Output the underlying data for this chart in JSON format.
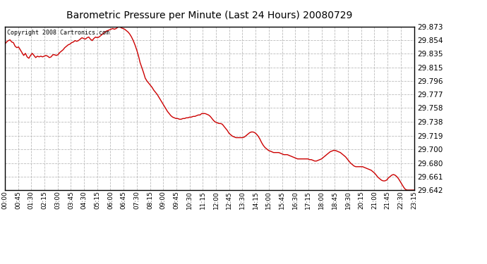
{
  "title": "Barometric Pressure per Minute (Last 24 Hours) 20080729",
  "copyright": "Copyright 2008 Cartronics.com",
  "line_color": "#cc0000",
  "bg_color": "#ffffff",
  "plot_bg_color": "#ffffff",
  "grid_color": "#bbbbbb",
  "border_color": "#000000",
  "yticks": [
    29.873,
    29.854,
    29.835,
    29.815,
    29.796,
    29.777,
    29.758,
    29.738,
    29.719,
    29.7,
    29.68,
    29.661,
    29.642
  ],
  "xtick_labels": [
    "00:00",
    "00:45",
    "01:30",
    "02:15",
    "03:00",
    "03:45",
    "04:30",
    "05:15",
    "06:00",
    "06:45",
    "07:30",
    "08:15",
    "09:00",
    "09:45",
    "10:30",
    "11:15",
    "12:00",
    "12:45",
    "13:30",
    "14:15",
    "15:00",
    "15:45",
    "16:30",
    "17:15",
    "18:00",
    "18:45",
    "19:30",
    "20:15",
    "21:00",
    "21:45",
    "22:30",
    "23:15"
  ],
  "ymin": 29.642,
  "ymax": 29.873,
  "pressure_data": [
    29.848,
    29.851,
    29.853,
    29.854,
    29.851,
    29.85,
    29.845,
    29.843,
    29.844,
    29.84,
    29.836,
    29.832,
    29.835,
    29.83,
    29.828,
    29.832,
    29.835,
    29.832,
    29.829,
    29.831,
    29.83,
    29.831,
    29.83,
    29.831,
    29.832,
    29.831,
    29.829,
    29.83,
    29.833,
    29.833,
    29.832,
    29.833,
    29.836,
    29.838,
    29.84,
    29.843,
    29.845,
    29.847,
    29.848,
    29.85,
    29.851,
    29.853,
    29.852,
    29.853,
    29.855,
    29.857,
    29.856,
    29.855,
    29.857,
    29.858,
    29.855,
    29.853,
    29.856,
    29.858,
    29.857,
    29.858,
    29.86,
    29.862,
    29.864,
    29.866,
    29.867,
    29.868,
    29.869,
    29.87,
    29.869,
    29.87,
    29.872,
    29.873,
    29.871,
    29.87,
    29.869,
    29.867,
    29.865,
    29.862,
    29.858,
    29.853,
    29.847,
    29.84,
    29.832,
    29.822,
    29.815,
    29.808,
    29.8,
    29.796,
    29.793,
    29.79,
    29.787,
    29.783,
    29.78,
    29.777,
    29.773,
    29.769,
    29.765,
    29.761,
    29.757,
    29.753,
    29.75,
    29.747,
    29.745,
    29.744,
    29.743,
    29.743,
    29.742,
    29.742,
    29.743,
    29.743,
    29.744,
    29.744,
    29.745,
    29.745,
    29.746,
    29.746,
    29.747,
    29.748,
    29.748,
    29.75,
    29.75,
    29.75,
    29.749,
    29.748,
    29.746,
    29.743,
    29.74,
    29.738,
    29.737,
    29.736,
    29.736,
    29.735,
    29.732,
    29.729,
    29.726,
    29.722,
    29.72,
    29.718,
    29.717,
    29.716,
    29.716,
    29.716,
    29.716,
    29.716,
    29.717,
    29.719,
    29.721,
    29.723,
    29.724,
    29.724,
    29.723,
    29.721,
    29.718,
    29.714,
    29.709,
    29.705,
    29.702,
    29.7,
    29.698,
    29.697,
    29.696,
    29.695,
    29.695,
    29.695,
    29.695,
    29.694,
    29.693,
    29.692,
    29.692,
    29.692,
    29.691,
    29.69,
    29.689,
    29.688,
    29.687,
    29.686,
    29.686,
    29.686,
    29.686,
    29.686,
    29.686,
    29.686,
    29.685,
    29.685,
    29.684,
    29.683,
    29.683,
    29.684,
    29.685,
    29.686,
    29.688,
    29.69,
    29.692,
    29.694,
    29.696,
    29.697,
    29.698,
    29.698,
    29.697,
    29.696,
    29.695,
    29.693,
    29.691,
    29.689,
    29.686,
    29.683,
    29.68,
    29.678,
    29.676,
    29.675,
    29.675,
    29.675,
    29.675,
    29.675,
    29.674,
    29.673,
    29.672,
    29.671,
    29.67,
    29.668,
    29.666,
    29.663,
    29.66,
    29.658,
    29.656,
    29.655,
    29.655,
    29.656,
    29.659,
    29.661,
    29.663,
    29.664,
    29.663,
    29.661,
    29.658,
    29.654,
    29.65,
    29.646,
    29.643,
    29.642,
    29.642,
    29.642,
    29.642,
    29.642
  ]
}
